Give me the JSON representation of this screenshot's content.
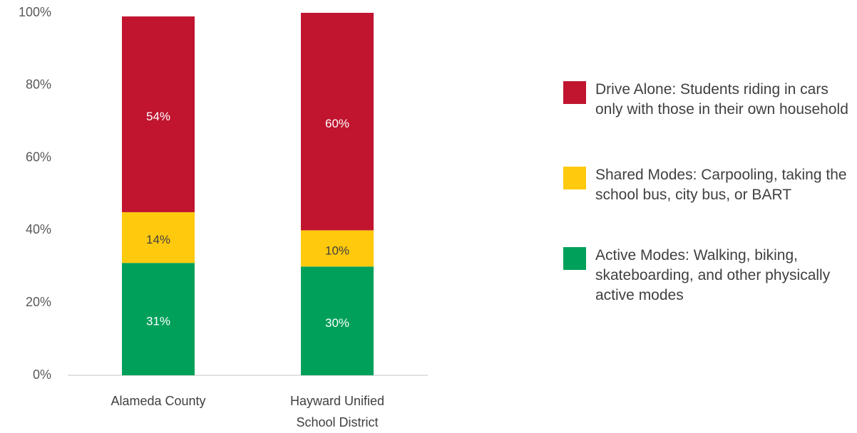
{
  "chart_data": {
    "type": "stacked_bar",
    "categories": [
      "Alameda County",
      "Hayward Unified School District"
    ],
    "series": [
      {
        "name": "Drive Alone: Students riding in cars only with those in their own household",
        "color": "#c0142f",
        "values": [
          54,
          60
        ],
        "value_labels": [
          "54%",
          "60%"
        ]
      },
      {
        "name": "Shared Modes: Carpooling, taking the school bus, city bus, or BART",
        "color": "#ffc90e",
        "values": [
          14,
          10
        ],
        "value_labels": [
          "14%",
          "10%"
        ]
      },
      {
        "name": "Active Modes: Walking, biking, skateboarding, and other physically active modes",
        "color": "#00a05a",
        "values": [
          31,
          30
        ],
        "value_labels": [
          "31%",
          "30%"
        ]
      }
    ],
    "ylim": [
      0,
      100
    ],
    "yticks": [
      {
        "value": 0,
        "label": "0%"
      },
      {
        "value": 20,
        "label": "20%"
      },
      {
        "value": 40,
        "label": "40%"
      },
      {
        "value": 60,
        "label": "60%"
      },
      {
        "value": 80,
        "label": "80%"
      },
      {
        "value": 100,
        "label": "100%"
      }
    ],
    "legend": "right"
  }
}
